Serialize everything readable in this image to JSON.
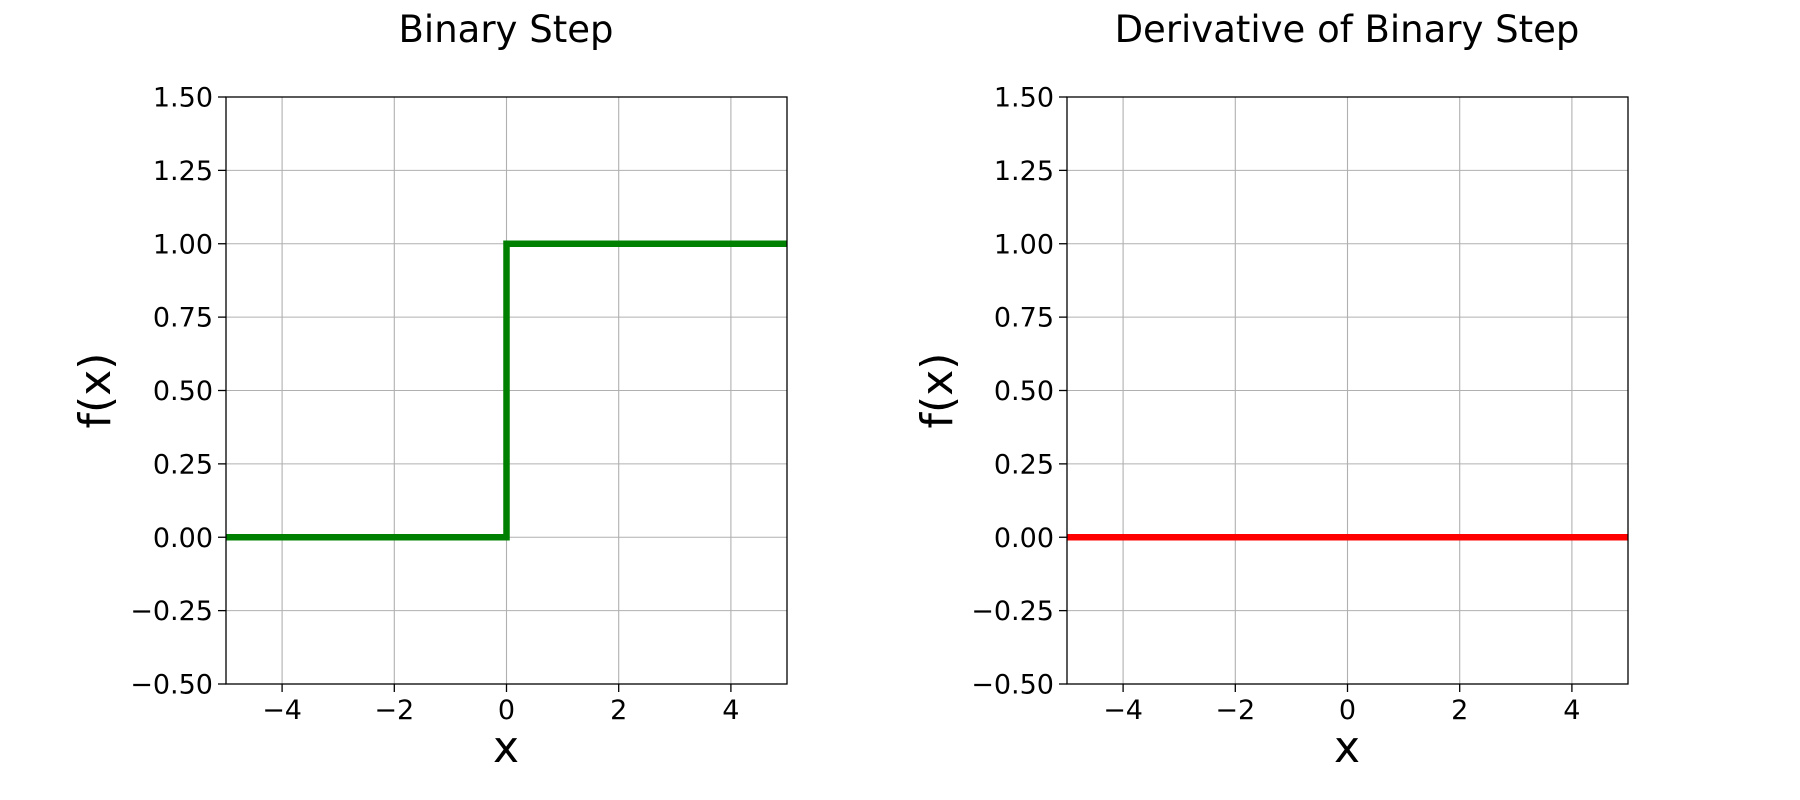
{
  "chart_data": [
    {
      "type": "line",
      "title": "Binary Step",
      "xlabel": "x",
      "ylabel": "f(x)",
      "xlim": [
        -5,
        5
      ],
      "ylim": [
        -0.5,
        1.5
      ],
      "xticks": [
        -4,
        -2,
        0,
        2,
        4
      ],
      "xtick_labels": [
        "−4",
        "−2",
        "0",
        "2",
        "4"
      ],
      "yticks": [
        -0.5,
        -0.25,
        0,
        0.25,
        0.5,
        0.75,
        1,
        1.25,
        1.5
      ],
      "ytick_labels": [
        "−0.50",
        "−0.25",
        "0.00",
        "0.25",
        "0.50",
        "0.75",
        "1.00",
        "1.25",
        "1.50"
      ],
      "grid": true,
      "series": [
        {
          "color": "#008000",
          "x": [
            -5,
            0,
            0,
            5
          ],
          "y": [
            0,
            0,
            1,
            1
          ]
        }
      ]
    },
    {
      "type": "line",
      "title": "Derivative of Binary Step",
      "xlabel": "x",
      "ylabel": "f(x)",
      "xlim": [
        -5,
        5
      ],
      "ylim": [
        -0.5,
        1.5
      ],
      "xticks": [
        -4,
        -2,
        0,
        2,
        4
      ],
      "xtick_labels": [
        "−4",
        "−2",
        "0",
        "2",
        "4"
      ],
      "yticks": [
        -0.5,
        -0.25,
        0,
        0.25,
        0.5,
        0.75,
        1,
        1.25,
        1.5
      ],
      "ytick_labels": [
        "−0.50",
        "−0.25",
        "0.00",
        "0.25",
        "0.50",
        "0.75",
        "1.00",
        "1.25",
        "1.50"
      ],
      "grid": true,
      "series": [
        {
          "color": "#ff0000",
          "x": [
            -5,
            5
          ],
          "y": [
            0,
            0
          ]
        }
      ]
    }
  ]
}
